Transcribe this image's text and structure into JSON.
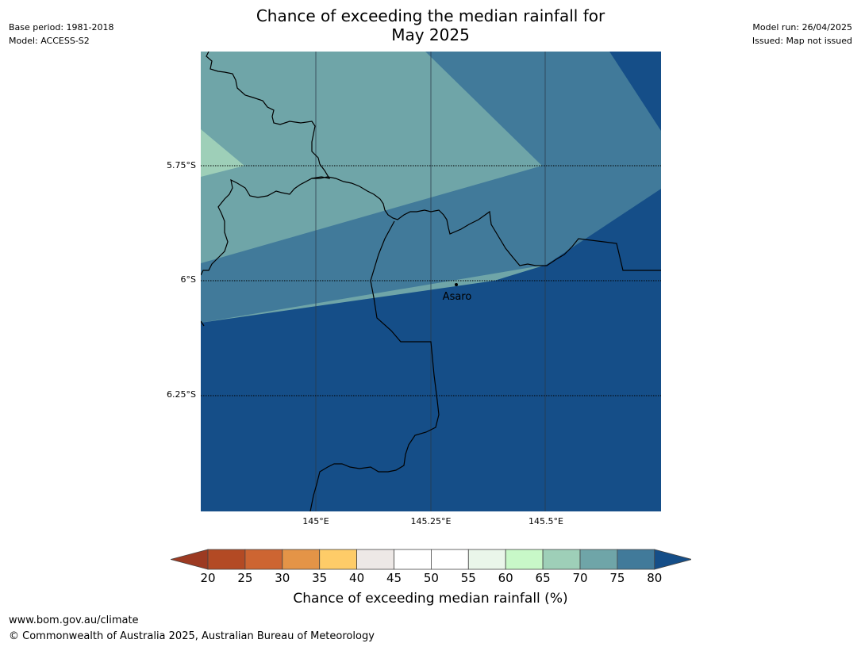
{
  "title_line1": "Chance of exceeding the median rainfall for",
  "title_line2": "May 2025",
  "meta_left": {
    "base_period": "Base period: 1981-2018",
    "model": "Model: ACCESS-S2"
  },
  "meta_right": {
    "model_run": "Model run: 26/04/2025",
    "issued": "Issued: Map not issued"
  },
  "map": {
    "lat_ticks": [
      "5.75°S",
      "6°S",
      "6.25°S"
    ],
    "lon_ticks": [
      "145°E",
      "145.25°E",
      "145.5°E"
    ],
    "place_label": "Asaro",
    "colors": {
      "band_65_70": "#9ecfb8",
      "band_70_75": "#6fa5a8",
      "band_75_80": "#417a9a",
      "band_80_plus": "#154e88"
    }
  },
  "colorbar": {
    "ticks": [
      "20",
      "25",
      "30",
      "35",
      "40",
      "45",
      "50",
      "55",
      "60",
      "65",
      "70",
      "75",
      "80"
    ],
    "colors": [
      "#9c3a22",
      "#b34a24",
      "#cd6532",
      "#e49447",
      "#fecc68",
      "#ede8e6",
      "#ffffff",
      "#ffffff",
      "#eaf6ea",
      "#c8f8c8",
      "#9ecfb8",
      "#6fa5a8",
      "#417a9a",
      "#154e88"
    ],
    "label": "Chance of exceeding median rainfall (%)"
  },
  "footer": {
    "url": "www.bom.gov.au/climate",
    "copyright": "© Commonwealth of Australia 2025, Australian Bureau of Meteorology"
  }
}
